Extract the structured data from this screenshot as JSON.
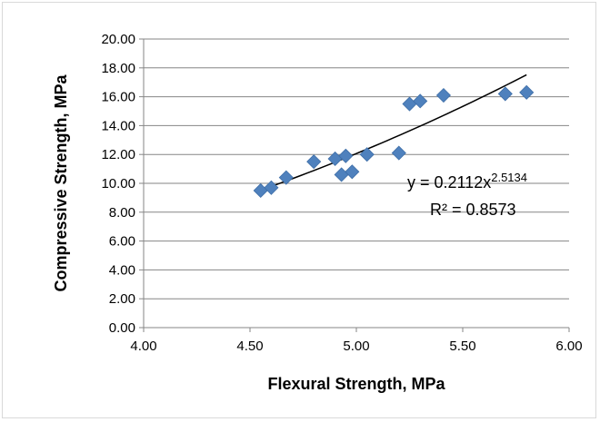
{
  "chart_data": {
    "type": "scatter",
    "xlabel": "Flexural Strength, MPa",
    "ylabel": "Compressive Strength, MPa",
    "xlim": [
      4.0,
      6.0
    ],
    "ylim": [
      0.0,
      20.0
    ],
    "x_ticks": [
      "4.00",
      "4.50",
      "5.00",
      "5.50",
      "6.00"
    ],
    "y_ticks": [
      "0.00",
      "2.00",
      "4.00",
      "6.00",
      "8.00",
      "10.00",
      "12.00",
      "14.00",
      "16.00",
      "18.00",
      "20.00"
    ],
    "grid": "horizontal",
    "marker": "diamond",
    "marker_color": "#4f81bd",
    "trendline_color": "#000000",
    "points": [
      {
        "x": 4.55,
        "y": 9.5
      },
      {
        "x": 4.6,
        "y": 9.7
      },
      {
        "x": 4.67,
        "y": 10.4
      },
      {
        "x": 4.8,
        "y": 11.5
      },
      {
        "x": 4.9,
        "y": 11.7
      },
      {
        "x": 4.93,
        "y": 10.6
      },
      {
        "x": 4.95,
        "y": 11.9
      },
      {
        "x": 4.98,
        "y": 10.8
      },
      {
        "x": 5.05,
        "y": 12.0
      },
      {
        "x": 5.2,
        "y": 12.1
      },
      {
        "x": 5.25,
        "y": 15.5
      },
      {
        "x": 5.3,
        "y": 15.7
      },
      {
        "x": 5.41,
        "y": 16.1
      },
      {
        "x": 5.7,
        "y": 16.2
      },
      {
        "x": 5.8,
        "y": 16.3
      }
    ],
    "trendline": {
      "type": "power",
      "coefficient": 0.2112,
      "exponent": 2.5134,
      "x_start": 4.55,
      "x_end": 5.8,
      "equation_base": "y = 0.2112x",
      "equation_exponent": "2.5134",
      "r_squared": "R² = 0.8573"
    }
  }
}
